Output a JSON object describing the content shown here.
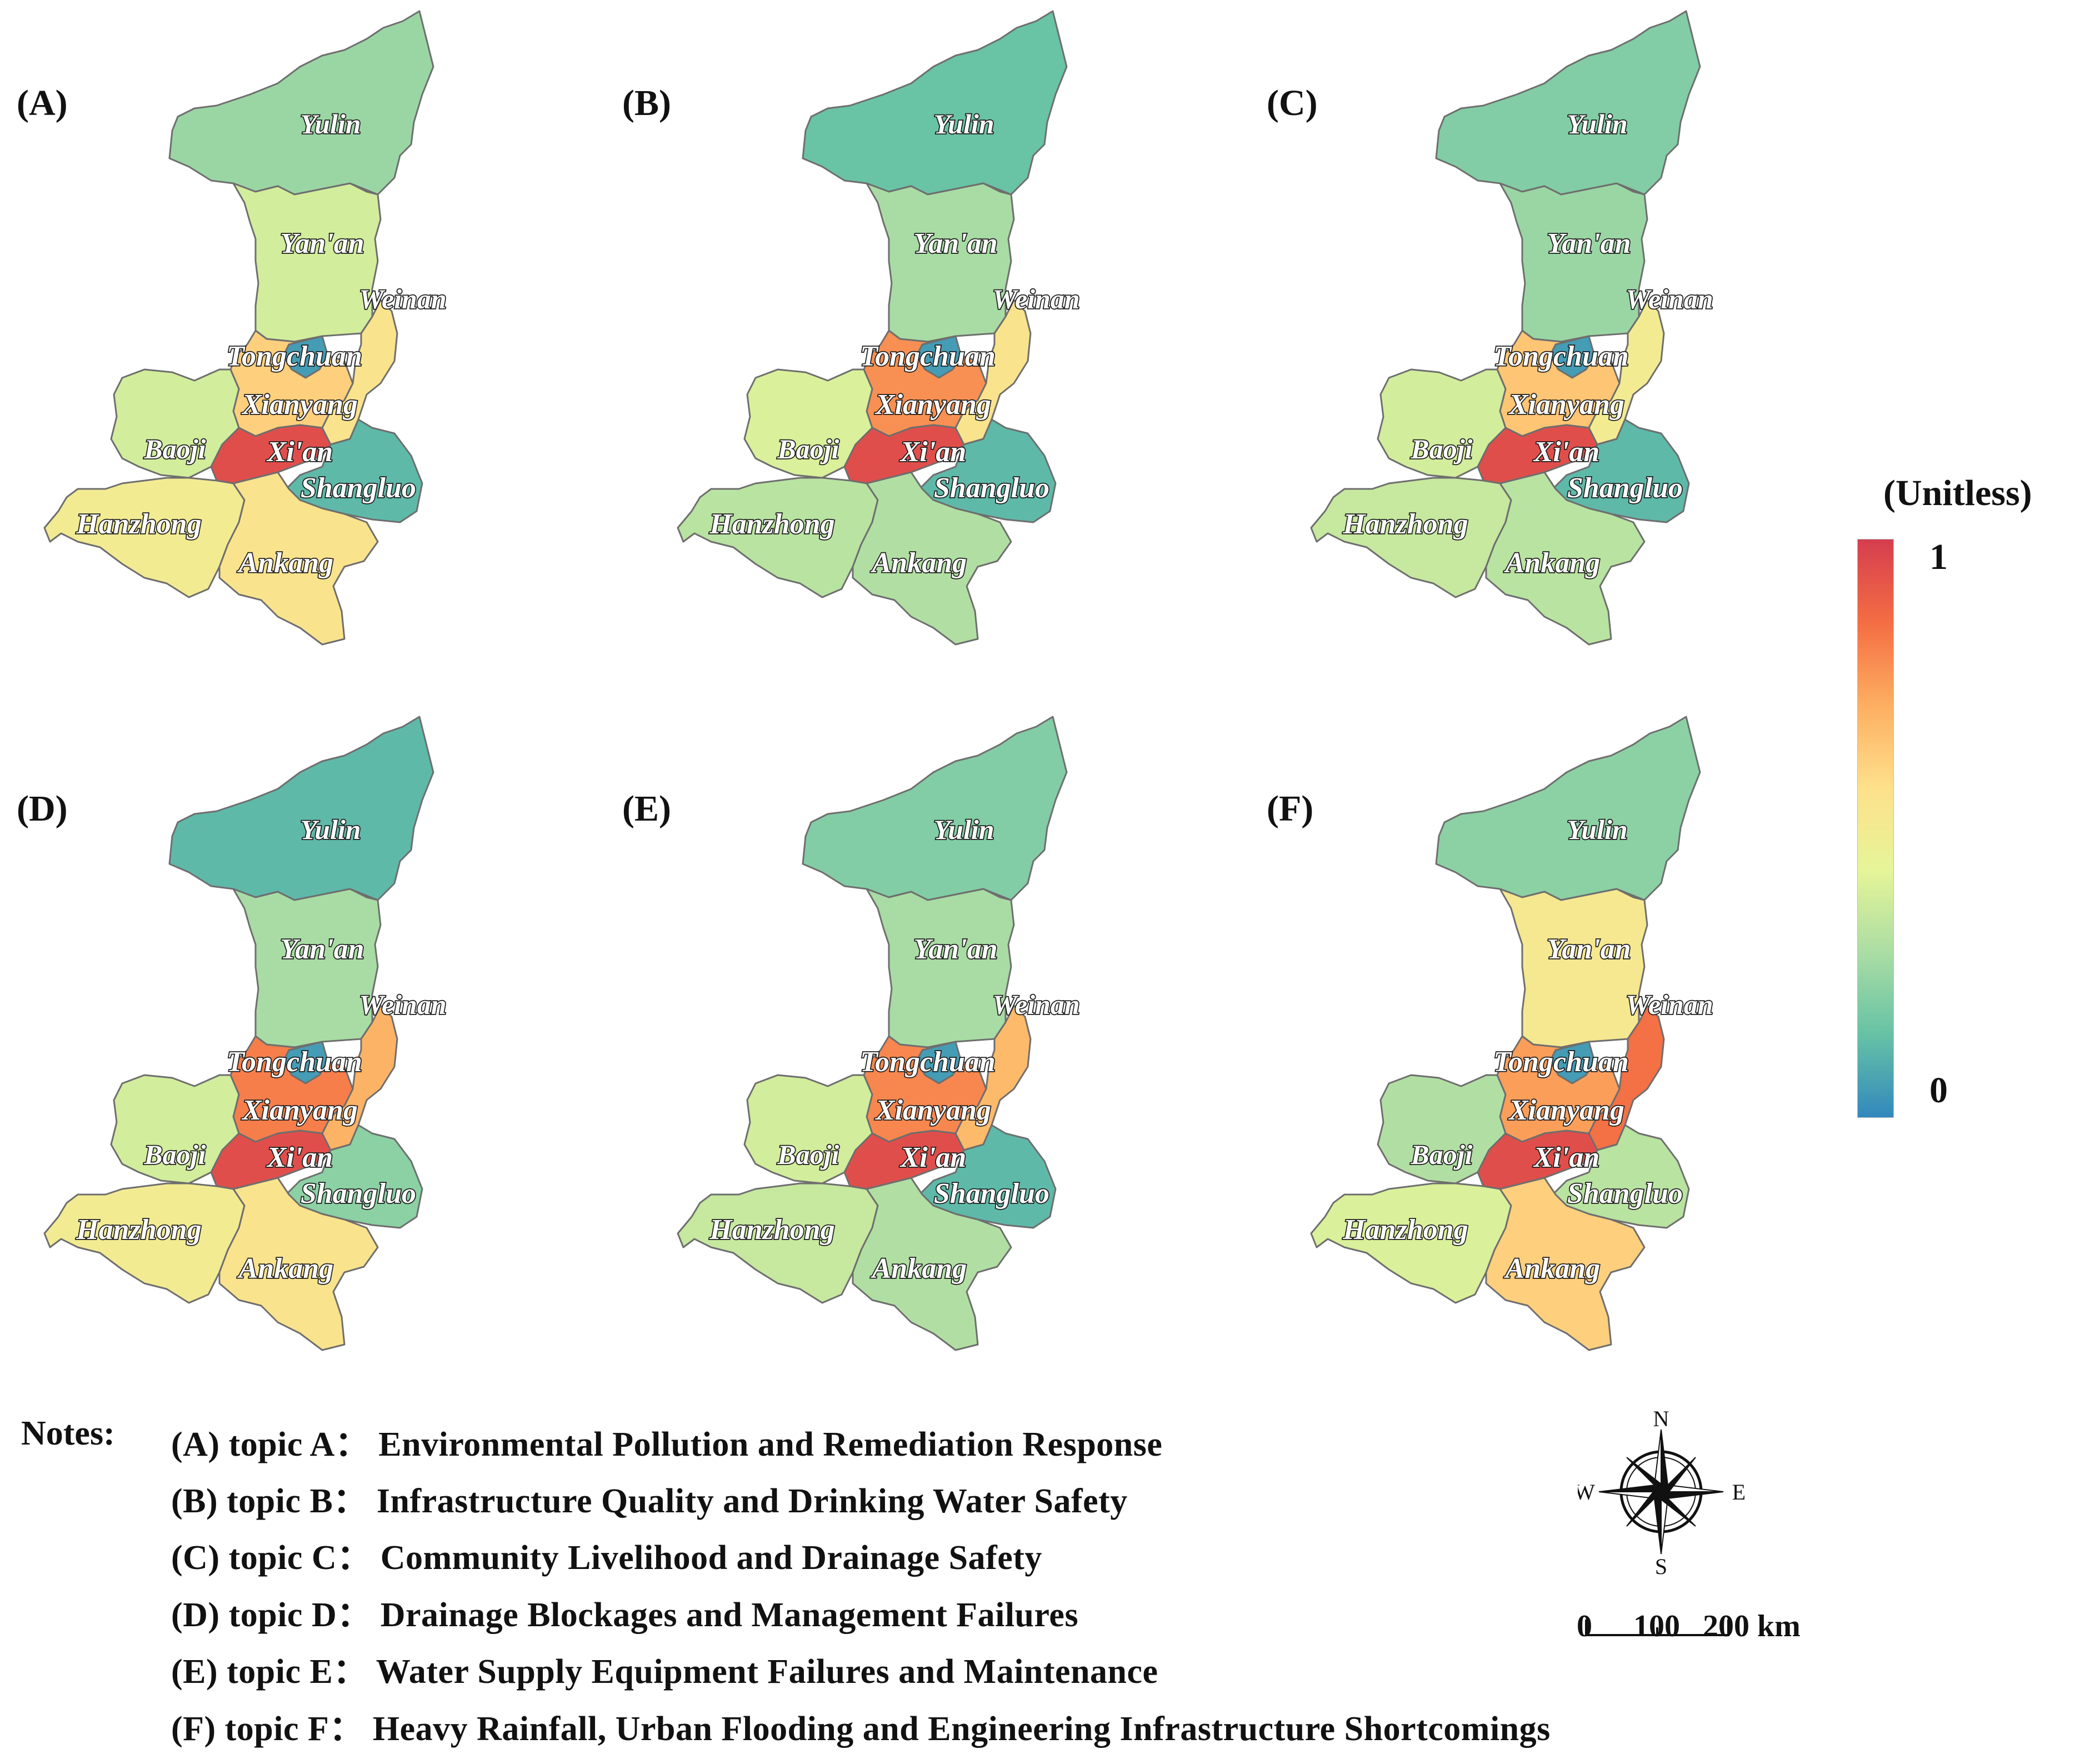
{
  "legend": {
    "title": "(Unitless)",
    "max_label": "1",
    "min_label": "0",
    "colormap": [
      "#3288bd",
      "#66c2a5",
      "#abdda4",
      "#e6f598",
      "#fee08b",
      "#fdae61",
      "#f46d43",
      "#d53e4f"
    ]
  },
  "cities": [
    "Yulin",
    "Yan'an",
    "Weinan",
    "Tongchuan",
    "Xianyang",
    "Baoji",
    "Xi'an",
    "Shangluo",
    "Hanzhong",
    "Ankang"
  ],
  "panels": [
    {
      "letter": "(A)",
      "values": {
        "Yulin": 0.25,
        "Yan'an": 0.38,
        "Weinan": 0.55,
        "Tongchuan": 0.05,
        "Xianyang": 0.62,
        "Baoji": 0.38,
        "Xi'an": 0.95,
        "Shangluo": 0.12,
        "Hanzhong": 0.5,
        "Ankang": 0.55
      }
    },
    {
      "letter": "(B)",
      "values": {
        "Yulin": 0.15,
        "Yan'an": 0.28,
        "Weinan": 0.55,
        "Tongchuan": 0.05,
        "Xianyang": 0.78,
        "Baoji": 0.4,
        "Xi'an": 0.95,
        "Shangluo": 0.12,
        "Hanzhong": 0.32,
        "Ankang": 0.3
      }
    },
    {
      "letter": "(C)",
      "values": {
        "Yulin": 0.2,
        "Yan'an": 0.25,
        "Weinan": 0.5,
        "Tongchuan": 0.05,
        "Xianyang": 0.65,
        "Baoji": 0.38,
        "Xi'an": 0.95,
        "Shangluo": 0.12,
        "Hanzhong": 0.35,
        "Ankang": 0.32
      }
    },
    {
      "letter": "(D)",
      "values": {
        "Yulin": 0.12,
        "Yan'an": 0.28,
        "Weinan": 0.7,
        "Tongchuan": 0.05,
        "Xianyang": 0.82,
        "Baoji": 0.38,
        "Xi'an": 0.95,
        "Shangluo": 0.22,
        "Hanzhong": 0.5,
        "Ankang": 0.55
      }
    },
    {
      "letter": "(E)",
      "values": {
        "Yulin": 0.2,
        "Yan'an": 0.28,
        "Weinan": 0.68,
        "Tongchuan": 0.05,
        "Xianyang": 0.8,
        "Baoji": 0.38,
        "Xi'an": 0.95,
        "Shangluo": 0.12,
        "Hanzhong": 0.35,
        "Ankang": 0.3
      }
    },
    {
      "letter": "(F)",
      "values": {
        "Yulin": 0.22,
        "Yan'an": 0.52,
        "Weinan": 0.85,
        "Tongchuan": 0.05,
        "Xianyang": 0.75,
        "Baoji": 0.3,
        "Xi'an": 0.95,
        "Shangluo": 0.32,
        "Hanzhong": 0.4,
        "Ankang": 0.62
      }
    }
  ],
  "notes": {
    "heading": "Notes:",
    "lines": [
      "(A) topic A： Environmental Pollution and Remediation Response",
      "(B) topic B： Infrastructure Quality and Drinking Water Safety",
      "(C) topic C： Community Livelihood and Drainage Safety",
      "(D) topic D： Drainage Blockages and Management Failures",
      "(E) topic E： Water Supply Equipment Failures and Maintenance",
      "(F) topic F： Heavy Rainfall, Urban Flooding and Engineering Infrastructure Shortcomings"
    ]
  },
  "compass": {
    "n": "N",
    "s": "S",
    "e": "E",
    "w": "W"
  },
  "scale": {
    "labels": [
      "0",
      "100",
      "200 km"
    ]
  }
}
